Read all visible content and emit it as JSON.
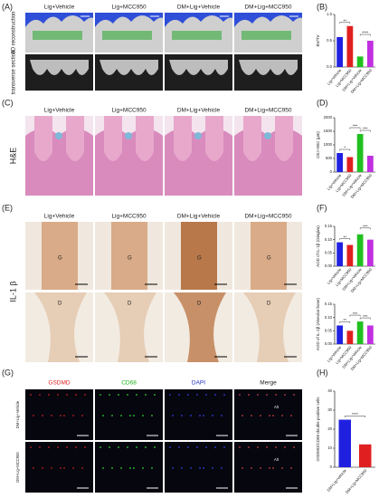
{
  "panel_labels": [
    "(A)",
    "(B)",
    "(C)",
    "(D)",
    "(E)",
    "(F)",
    "(G)",
    "(H)"
  ],
  "panel_a": {
    "columns": [
      "Lig+Vehicle",
      "Lig+MCC950",
      "DM+Lig+Vehicle",
      "DM+Lig+MCC950"
    ],
    "rows": [
      "3D reconstruction",
      "transverse section"
    ]
  },
  "panel_c": {
    "columns": [
      "Lig+Vehicle",
      "Lig+MCC950",
      "DM+Lig+Vehicle",
      "DM+Lig+MCC950"
    ],
    "row": "H&E"
  },
  "panel_e": {
    "columns": [
      "Lig+Vehicle",
      "Lig+MCC950",
      "DM+Lig+Vehicle",
      "DM+Lig+MCC950"
    ],
    "row": "IL-1 β",
    "markers": [
      "G",
      "D"
    ]
  },
  "panel_g": {
    "columns": [
      "GSDMD",
      "CD68",
      "DAPI",
      "Merge"
    ],
    "column_colors": [
      "#e02020",
      "#20b020",
      "#2030c0",
      "#222222"
    ],
    "rows": [
      "DM+Lig+Vehicle",
      "DM+Lig+MCC950"
    ],
    "marker": "Alt"
  },
  "chart_data": [
    {
      "type": "bar",
      "ylabel": "BV/TV",
      "categories": [
        "Lig+Vehicle",
        "Lig+MCC950",
        "DM+Lig+Vehicle",
        "DM+Lig+MCC950"
      ],
      "values": [
        0.57,
        0.78,
        0.2,
        0.5
      ],
      "colors": [
        "#2020e0",
        "#e02020",
        "#20c020",
        "#c030e0"
      ],
      "ylim": [
        0,
        1
      ],
      "yticks": [
        {
          "value": 0,
          "label": "0.0"
        },
        {
          "value": 0.5,
          "label": "0.5"
        },
        {
          "value": 1,
          "label": "1.0"
        }
      ],
      "comparisons": [
        {
          "pair": [
            0,
            1
          ],
          "label": "**"
        },
        {
          "pair": [
            2,
            3
          ],
          "label": "****"
        }
      ]
    },
    {
      "type": "bar",
      "ylabel": "CEJ-ABC (μm)",
      "categories": [
        "Lig+Vehicle",
        "Lig+MCC950",
        "DM+Lig+Vehicle",
        "DM+Lig+MCC950"
      ],
      "values": [
        700,
        550,
        1400,
        600
      ],
      "colors": [
        "#2020e0",
        "#e02020",
        "#20c020",
        "#c030e0"
      ],
      "ylim": [
        0,
        2000
      ],
      "yticks": [
        0,
        500,
        1000,
        1500,
        2000
      ],
      "comparisons": [
        {
          "pair": [
            0,
            1
          ],
          "label": "*"
        },
        {
          "pair": [
            1,
            2
          ],
          "label": "***"
        },
        {
          "pair": [
            2,
            3
          ],
          "label": "***"
        }
      ]
    },
    {
      "type": "bar",
      "ylabel": "AOD of IL-1β (Gingiva)",
      "categories": [
        "Lig+Vehicle",
        "Lig+MCC950",
        "DM+Lig+Vehicle",
        "DM+Lig+MCC950"
      ],
      "values": [
        0.09,
        0.08,
        0.12,
        0.1
      ],
      "colors": [
        "#2020e0",
        "#e02020",
        "#20c020",
        "#c030e0"
      ],
      "ylim": [
        0,
        0.15
      ],
      "yticks": [
        {
          "value": 0,
          "label": "0.00"
        },
        {
          "value": 0.05,
          "label": "0.05"
        },
        {
          "value": 0.1,
          "label": "0.10"
        },
        {
          "value": 0.15,
          "label": "0.15"
        }
      ],
      "comparisons": [
        {
          "pair": [
            0,
            1
          ],
          "label": "**"
        },
        {
          "pair": [
            2,
            3
          ],
          "label": "***"
        }
      ]
    },
    {
      "type": "bar",
      "ylabel": "AOD of IL-1β (Alveolar bone)",
      "categories": [
        "Lig+Vehicle",
        "Lig+MCC950",
        "DM+Lig+Vehicle",
        "DM+Lig+MCC950"
      ],
      "values": [
        0.07,
        0.05,
        0.085,
        0.07
      ],
      "colors": [
        "#2020e0",
        "#e02020",
        "#20c020",
        "#c030e0"
      ],
      "ylim": [
        0,
        0.15
      ],
      "yticks": [
        {
          "value": 0,
          "label": "0.00"
        },
        {
          "value": 0.05,
          "label": "0.05"
        },
        {
          "value": 0.1,
          "label": "0.10"
        },
        {
          "value": 0.15,
          "label": "0.15"
        }
      ],
      "comparisons": [
        {
          "pair": [
            0,
            1
          ],
          "label": "**"
        },
        {
          "pair": [
            1,
            2
          ],
          "label": "***"
        },
        {
          "pair": [
            2,
            3
          ],
          "label": "***"
        }
      ]
    },
    {
      "type": "bar",
      "ylabel": "GSDMD/CD68 double positive cells",
      "categories": [
        "DM+Lig+Vehicle",
        "DM+Lig+MCC950"
      ],
      "values": [
        25,
        12
      ],
      "colors": [
        "#2020e0",
        "#e02020"
      ],
      "ylim": [
        0,
        40
      ],
      "yticks": [
        0,
        10,
        20,
        30,
        40
      ],
      "comparisons": [
        {
          "pair": [
            0,
            1
          ],
          "label": "****"
        }
      ]
    }
  ]
}
